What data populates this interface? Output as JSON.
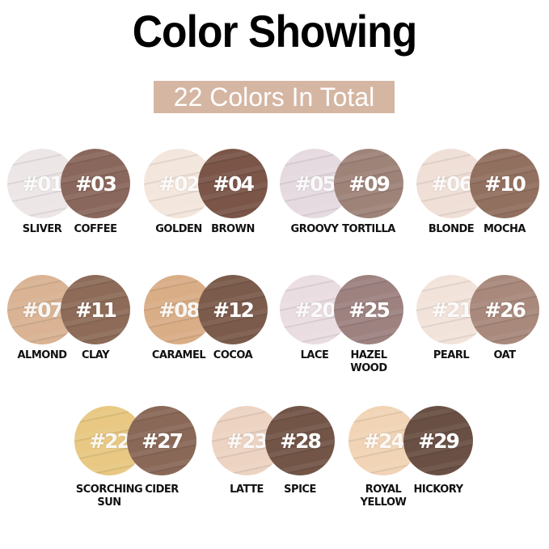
{
  "title": "Color Showing",
  "subtitle": "22 Colors In Total",
  "subtitle_bg": "#d4b6a2",
  "swatches": [
    {
      "code": "#01",
      "name": "SLIVER",
      "color": "#ede6e6",
      "tone": "light"
    },
    {
      "code": "#03",
      "name": "COFFEE",
      "color": "#8a675c",
      "tone": "dark"
    },
    {
      "code": "#02",
      "name": "GOLDEN",
      "color": "#f3e6dc",
      "tone": "light"
    },
    {
      "code": "#04",
      "name": "BROWN",
      "color": "#7a5548",
      "tone": "dark"
    },
    {
      "code": "#05",
      "name": "GROOVY",
      "color": "#e5dae0",
      "tone": "light"
    },
    {
      "code": "#09",
      "name": "TORTILLA",
      "color": "#9e8378",
      "tone": "dark"
    },
    {
      "code": "#06",
      "name": "BLONDE",
      "color": "#efdfd6",
      "tone": "light"
    },
    {
      "code": "#10",
      "name": "MOCHA",
      "color": "#92705f",
      "tone": "dark"
    },
    {
      "code": "#07",
      "name": "ALMOND",
      "color": "#d9b394",
      "tone": "light"
    },
    {
      "code": "#11",
      "name": "CLAY",
      "color": "#8d6b58",
      "tone": "dark"
    },
    {
      "code": "#08",
      "name": "CARAMEL",
      "color": "#d9ad86",
      "tone": "light"
    },
    {
      "code": "#12",
      "name": "COCOA",
      "color": "#7b5b4b",
      "tone": "dark"
    },
    {
      "code": "#20",
      "name": "LACE",
      "color": "#eadde2",
      "tone": "light"
    },
    {
      "code": "#25",
      "name": "HAZEL\nWOOD",
      "color": "#9d8280",
      "tone": "dark"
    },
    {
      "code": "#21",
      "name": "PEARL",
      "color": "#f2e3da",
      "tone": "light"
    },
    {
      "code": "#26",
      "name": "OAT",
      "color": "#a8897b",
      "tone": "dark"
    },
    {
      "code": "#22",
      "name": "SCORCHING\nSUN",
      "color": "#e8c882",
      "tone": "light"
    },
    {
      "code": "#27",
      "name": "CIDER",
      "color": "#8a6857",
      "tone": "dark"
    },
    {
      "code": "#23",
      "name": "LATTE",
      "color": "#edd3c2",
      "tone": "light"
    },
    {
      "code": "#28",
      "name": "SPICE",
      "color": "#725547",
      "tone": "dark"
    },
    {
      "code": "#24",
      "name": "ROYAL\nYELLOW",
      "color": "#f1d4b5",
      "tone": "light"
    },
    {
      "code": "#29",
      "name": "HICKORY",
      "color": "#6a5044",
      "tone": "dark"
    }
  ]
}
